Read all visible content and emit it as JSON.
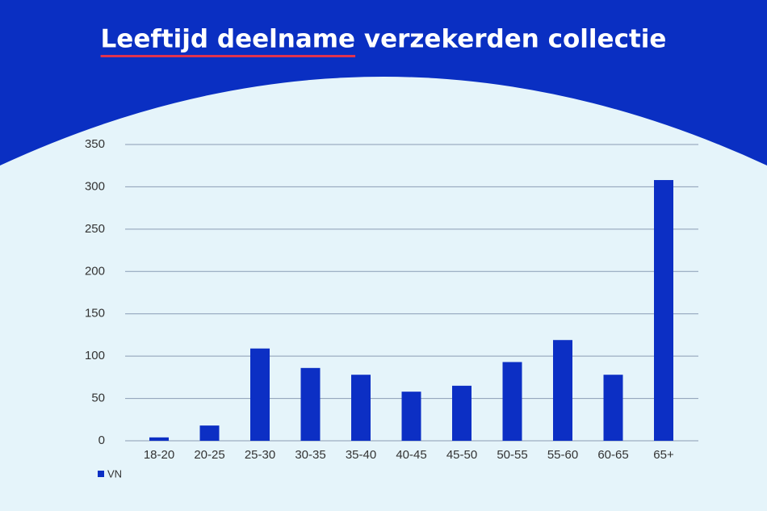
{
  "chart_data": {
    "type": "bar",
    "title": "Leeftijd deelname verzekerden collectie",
    "categories": [
      "18-20",
      "20-25",
      "25-30",
      "30-35",
      "35-40",
      "40-45",
      "45-50",
      "50-55",
      "55-60",
      "60-65",
      "65+"
    ],
    "series": [
      {
        "name": "VN",
        "color": "#0c2fc4",
        "values": [
          4,
          18,
          109,
          86,
          78,
          58,
          65,
          93,
          119,
          78,
          308
        ]
      }
    ],
    "ylim": [
      0,
      350
    ],
    "yticks": [
      0,
      50,
      100,
      150,
      200,
      250,
      300,
      350
    ],
    "grid": true
  }
}
